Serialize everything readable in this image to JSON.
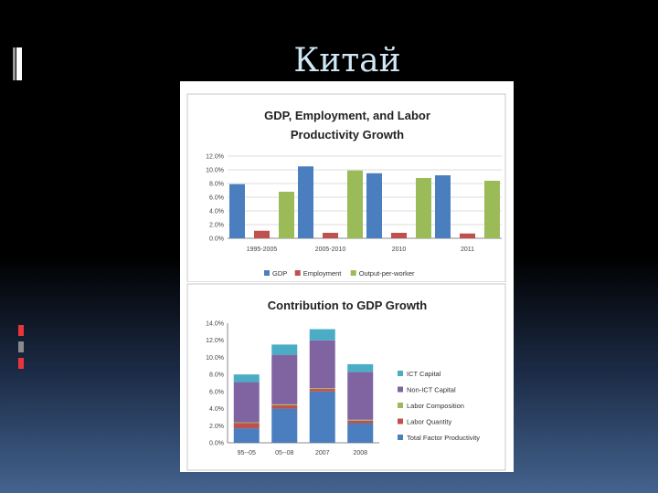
{
  "slide": {
    "title": "Китай",
    "colors": {
      "background_top": "#000000",
      "background_bottom": "#44638f",
      "title": "#cfe6f5",
      "accent_red": "#e8343b",
      "accent_grey": "#8a8a8a"
    }
  },
  "chart_data": [
    {
      "type": "bar",
      "title_lines": [
        "GDP, Employment, and Labor",
        "Productivity Growth"
      ],
      "categories": [
        "1995-2005",
        "2005-2010",
        "2010",
        "2011"
      ],
      "series": [
        {
          "name": "GDP",
          "color": "#4a7ebf",
          "values": [
            7.9,
            10.5,
            9.5,
            9.2
          ]
        },
        {
          "name": "Employment",
          "color": "#c0504d",
          "values": [
            1.1,
            0.8,
            0.8,
            0.7
          ]
        },
        {
          "name": "Output-per-worker",
          "color": "#9bbb59",
          "values": [
            6.8,
            9.9,
            8.8,
            8.4
          ]
        }
      ],
      "y_ticks": [
        "12.0%",
        "10.0%",
        "8.0%",
        "6.0%",
        "4.0%",
        "2.0%",
        "0.0%"
      ],
      "ylim": [
        0,
        12
      ],
      "grid": true,
      "legend_position": "bottom"
    },
    {
      "type": "bar",
      "stacked": true,
      "title_lines": [
        "Contribution to GDP Growth"
      ],
      "categories": [
        "95--05",
        "05--08",
        "2007",
        "2008"
      ],
      "series": [
        {
          "name": "Total Factor Productivity",
          "color": "#4a7ebf",
          "values": [
            1.7,
            4.0,
            6.0,
            2.3
          ]
        },
        {
          "name": "Labor Quantity",
          "color": "#c0504d",
          "values": [
            0.6,
            0.4,
            0.3,
            0.3
          ]
        },
        {
          "name": "Labor Composition",
          "color": "#9bbb59",
          "values": [
            0.1,
            0.1,
            0.1,
            0.1
          ]
        },
        {
          "name": "Non-ICT Capital",
          "color": "#8064a2",
          "values": [
            4.7,
            5.8,
            5.6,
            5.6
          ]
        },
        {
          "name": "ICT Capital",
          "color": "#4bacc6",
          "values": [
            0.9,
            1.2,
            1.3,
            0.9
          ]
        }
      ],
      "legend_order": [
        "ICT Capital",
        "Non-ICT Capital",
        "Labor Composition",
        "Labor Quantity",
        "Total Factor Productivity"
      ],
      "y_ticks": [
        "14.0%",
        "12.0%",
        "10.0%",
        "8.0%",
        "6.0%",
        "4.0%",
        "2.0%",
        "0.0%"
      ],
      "ylim": [
        0,
        14
      ],
      "grid": false,
      "legend_position": "right"
    }
  ]
}
